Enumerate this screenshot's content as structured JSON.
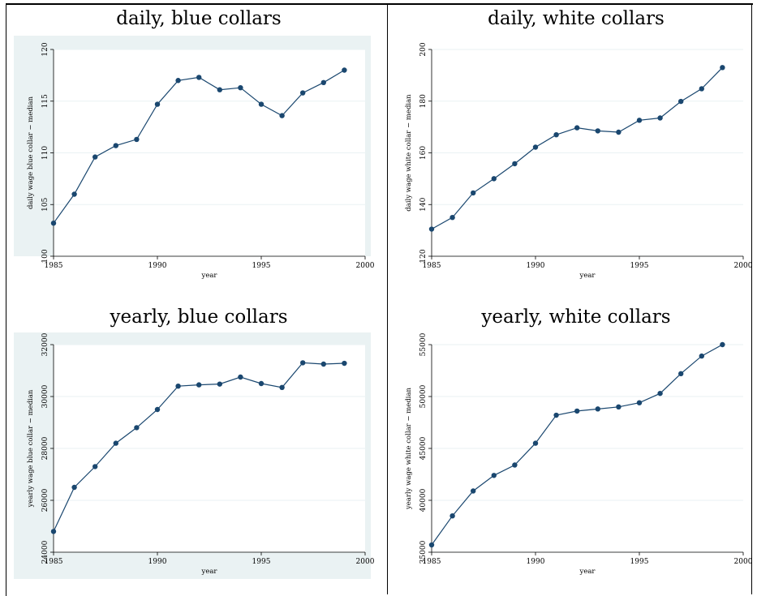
{
  "chart_data": [
    {
      "type": "line",
      "title": "daily, blue collars",
      "xlabel": "year",
      "ylabel": "daily wage blue collar − median",
      "x": [
        1985,
        1986,
        1987,
        1988,
        1989,
        1990,
        1991,
        1992,
        1993,
        1994,
        1995,
        1996,
        1997,
        1998,
        1999
      ],
      "y": [
        103.2,
        106.0,
        109.6,
        110.7,
        111.3,
        114.7,
        117.0,
        117.3,
        116.1,
        116.3,
        114.7,
        113.6,
        115.8,
        116.8,
        118.0
      ],
      "xlim": [
        1985,
        2000
      ],
      "ylim": [
        100,
        120
      ],
      "xticks": [
        1985,
        1990,
        1995,
        2000
      ],
      "yticks": [
        100,
        105,
        110,
        115,
        120
      ],
      "grid": true
    },
    {
      "type": "line",
      "title": "daily, white collars",
      "xlabel": "year",
      "ylabel": "daily wage white collar − median",
      "x": [
        1985,
        1986,
        1987,
        1988,
        1989,
        1990,
        1991,
        1992,
        1993,
        1994,
        1995,
        1996,
        1997,
        1998,
        1999
      ],
      "y": [
        130.5,
        135.0,
        144.5,
        150.0,
        155.8,
        162.2,
        167.0,
        169.7,
        168.5,
        168.0,
        172.6,
        173.5,
        179.9,
        184.8,
        193.0
      ],
      "xlim": [
        1985,
        2000
      ],
      "ylim": [
        120,
        200
      ],
      "xticks": [
        1985,
        1990,
        1995,
        2000
      ],
      "yticks": [
        120,
        140,
        160,
        180,
        200
      ],
      "grid": true
    },
    {
      "type": "line",
      "title": "yearly, blue collars",
      "xlabel": "year",
      "ylabel": "yearly wage blue collar − median",
      "x": [
        1985,
        1986,
        1987,
        1988,
        1989,
        1990,
        1991,
        1992,
        1993,
        1994,
        1995,
        1996,
        1997,
        1998,
        1999
      ],
      "y": [
        24800,
        26500,
        27300,
        28200,
        28800,
        29500,
        30400,
        30450,
        30480,
        30750,
        30500,
        30350,
        31300,
        31250,
        31280
      ],
      "xlim": [
        1985,
        2000
      ],
      "ylim": [
        24000,
        32000
      ],
      "xticks": [
        1985,
        1990,
        1995,
        2000
      ],
      "yticks": [
        24000,
        26000,
        28000,
        30000,
        32000
      ],
      "grid": true
    },
    {
      "type": "line",
      "title": "yearly, white collars",
      "xlabel": "year",
      "ylabel": "yearly wage white collar − median",
      "x": [
        1985,
        1986,
        1987,
        1988,
        1989,
        1990,
        1991,
        1992,
        1993,
        1994,
        1995,
        1996,
        1997,
        1998,
        1999
      ],
      "y": [
        35700,
        38500,
        40900,
        42400,
        43400,
        45500,
        48200,
        48600,
        48800,
        49000,
        49400,
        50300,
        52200,
        53900,
        55000
      ],
      "xlim": [
        1985,
        2000
      ],
      "ylim": [
        35000,
        55000
      ],
      "xticks": [
        1985,
        1990,
        1995,
        2000
      ],
      "yticks": [
        35000,
        40000,
        45000,
        50000,
        55000
      ],
      "grid": true
    }
  ],
  "colors": {
    "panel_bg": "#eaf2f3",
    "plot_bg": "#ffffff",
    "line": "#1a476f",
    "grid": "#eaf2f3",
    "border": "#000000"
  }
}
